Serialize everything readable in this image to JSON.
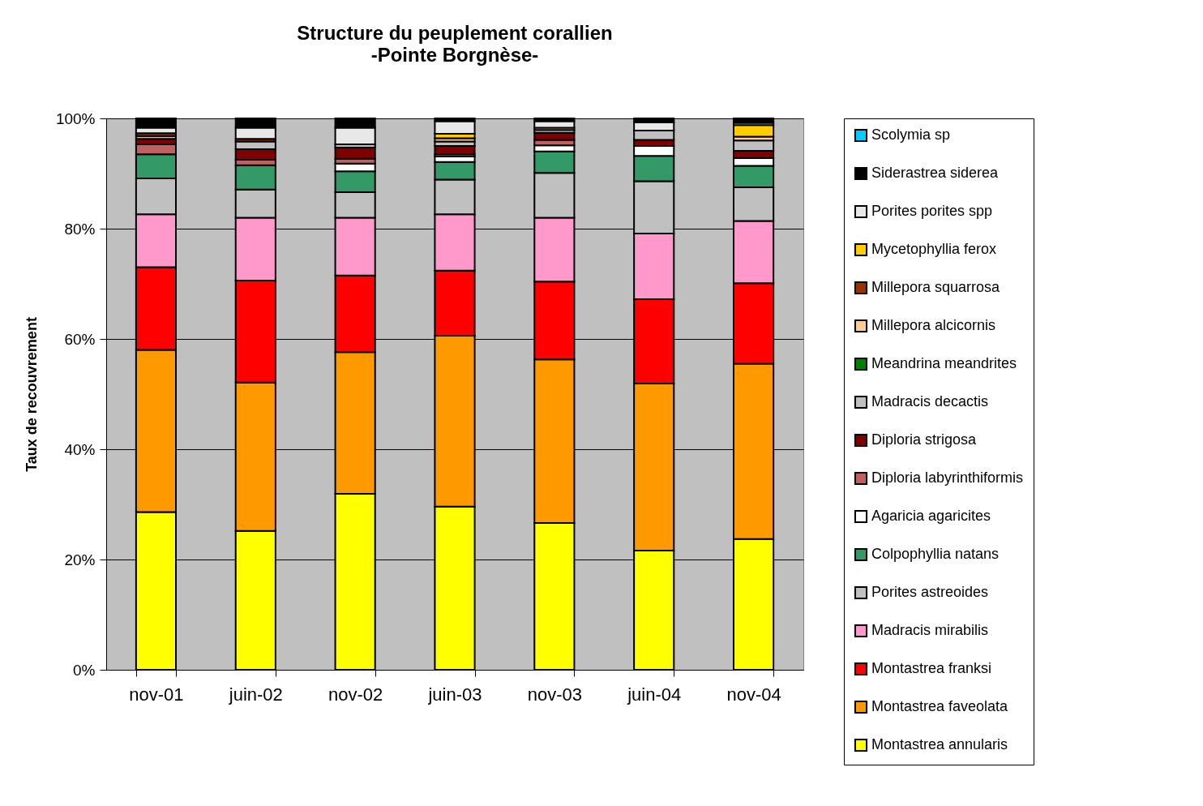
{
  "chart_data": {
    "type": "bar",
    "title": "Structure du peuplement corallien",
    "subtitle": "-Pointe Borgnèse-",
    "ylabel": "Taux de recouvrement",
    "stacked": true,
    "categories": [
      "nov-01",
      "juin-02",
      "nov-02",
      "juin-03",
      "nov-03",
      "juin-04",
      "nov-04"
    ],
    "series": [
      {
        "name": "Montastrea annularis",
        "color": "#ffff00",
        "values": [
          28.6,
          25.2,
          31.9,
          29.6,
          26.6,
          21.6,
          23.7
        ]
      },
      {
        "name": "Montastrea faveolata",
        "color": "#ff9900",
        "values": [
          29.4,
          26.9,
          25.7,
          31.0,
          29.7,
          30.3,
          31.8
        ]
      },
      {
        "name": "Montastrea franksi",
        "color": "#ff0000",
        "values": [
          15.0,
          18.5,
          13.9,
          11.8,
          14.1,
          15.3,
          14.6
        ]
      },
      {
        "name": "Madracis mirabilis",
        "color": "#ff99cc",
        "values": [
          9.6,
          11.4,
          10.5,
          10.2,
          11.6,
          11.9,
          11.3
        ]
      },
      {
        "name": "Porites astreoides",
        "color": "#c0c0c0",
        "values": [
          6.5,
          5.1,
          4.6,
          6.3,
          8.1,
          9.5,
          6.1
        ]
      },
      {
        "name": "Colpophyllia natans",
        "color": "#339966",
        "values": [
          4.4,
          4.4,
          3.8,
          3.2,
          3.9,
          4.6,
          3.9
        ]
      },
      {
        "name": "Agaricia agaricites",
        "color": "#ffffff",
        "values": [
          null,
          null,
          1.4,
          1.0,
          1.1,
          1.8,
          1.4
        ]
      },
      {
        "name": "Diploria labyrinthiformis",
        "color": "#c06060",
        "values": [
          1.8,
          1.0,
          0.9,
          0.4,
          1.0,
          null,
          null
        ]
      },
      {
        "name": "Diploria strigosa",
        "color": "#800000",
        "values": [
          1.0,
          1.9,
          2.0,
          1.5,
          1.3,
          1.1,
          1.3
        ]
      },
      {
        "name": "Madracis decactis",
        "color": "#c0c0c0",
        "values": [
          0.5,
          1.4,
          0.6,
          0.8,
          0.5,
          1.7,
          1.9
        ]
      },
      {
        "name": "Meandrina meandrites",
        "color": "#008000",
        "values": [
          null,
          null,
          null,
          null,
          null,
          null,
          null
        ]
      },
      {
        "name": "Millepora alcicornis",
        "color": "#ffcc99",
        "values": [
          null,
          null,
          null,
          0.6,
          0.4,
          null,
          0.7
        ]
      },
      {
        "name": "Millepora squarrosa",
        "color": "#993300",
        "values": [
          0.5,
          0.5,
          null,
          null,
          null,
          null,
          null
        ]
      },
      {
        "name": "Mycetophyllia ferox",
        "color": "#ffcc00",
        "values": [
          null,
          null,
          null,
          0.8,
          null,
          null,
          2.1
        ]
      },
      {
        "name": "Porites porites spp",
        "color": "#e8e8e8",
        "values": [
          1.0,
          2.0,
          3.0,
          2.3,
          1.2,
          1.5,
          0.4
        ]
      },
      {
        "name": "Siderastrea siderea",
        "color": "#000000",
        "values": [
          1.7,
          1.7,
          1.7,
          0.5,
          0.5,
          0.7,
          0.8
        ]
      },
      {
        "name": "Scolymia sp",
        "color": "#00ccff",
        "values": [
          null,
          null,
          null,
          null,
          null,
          null,
          null
        ]
      }
    ],
    "ylim": [
      0,
      100
    ],
    "yticks": [
      {
        "value": 0,
        "label": "0%"
      },
      {
        "value": 20,
        "label": "20%"
      },
      {
        "value": 40,
        "label": "40%"
      },
      {
        "value": 60,
        "label": "60%"
      },
      {
        "value": 80,
        "label": "80%"
      },
      {
        "value": 100,
        "label": "100%"
      }
    ],
    "grid": "y",
    "legend": "right"
  }
}
